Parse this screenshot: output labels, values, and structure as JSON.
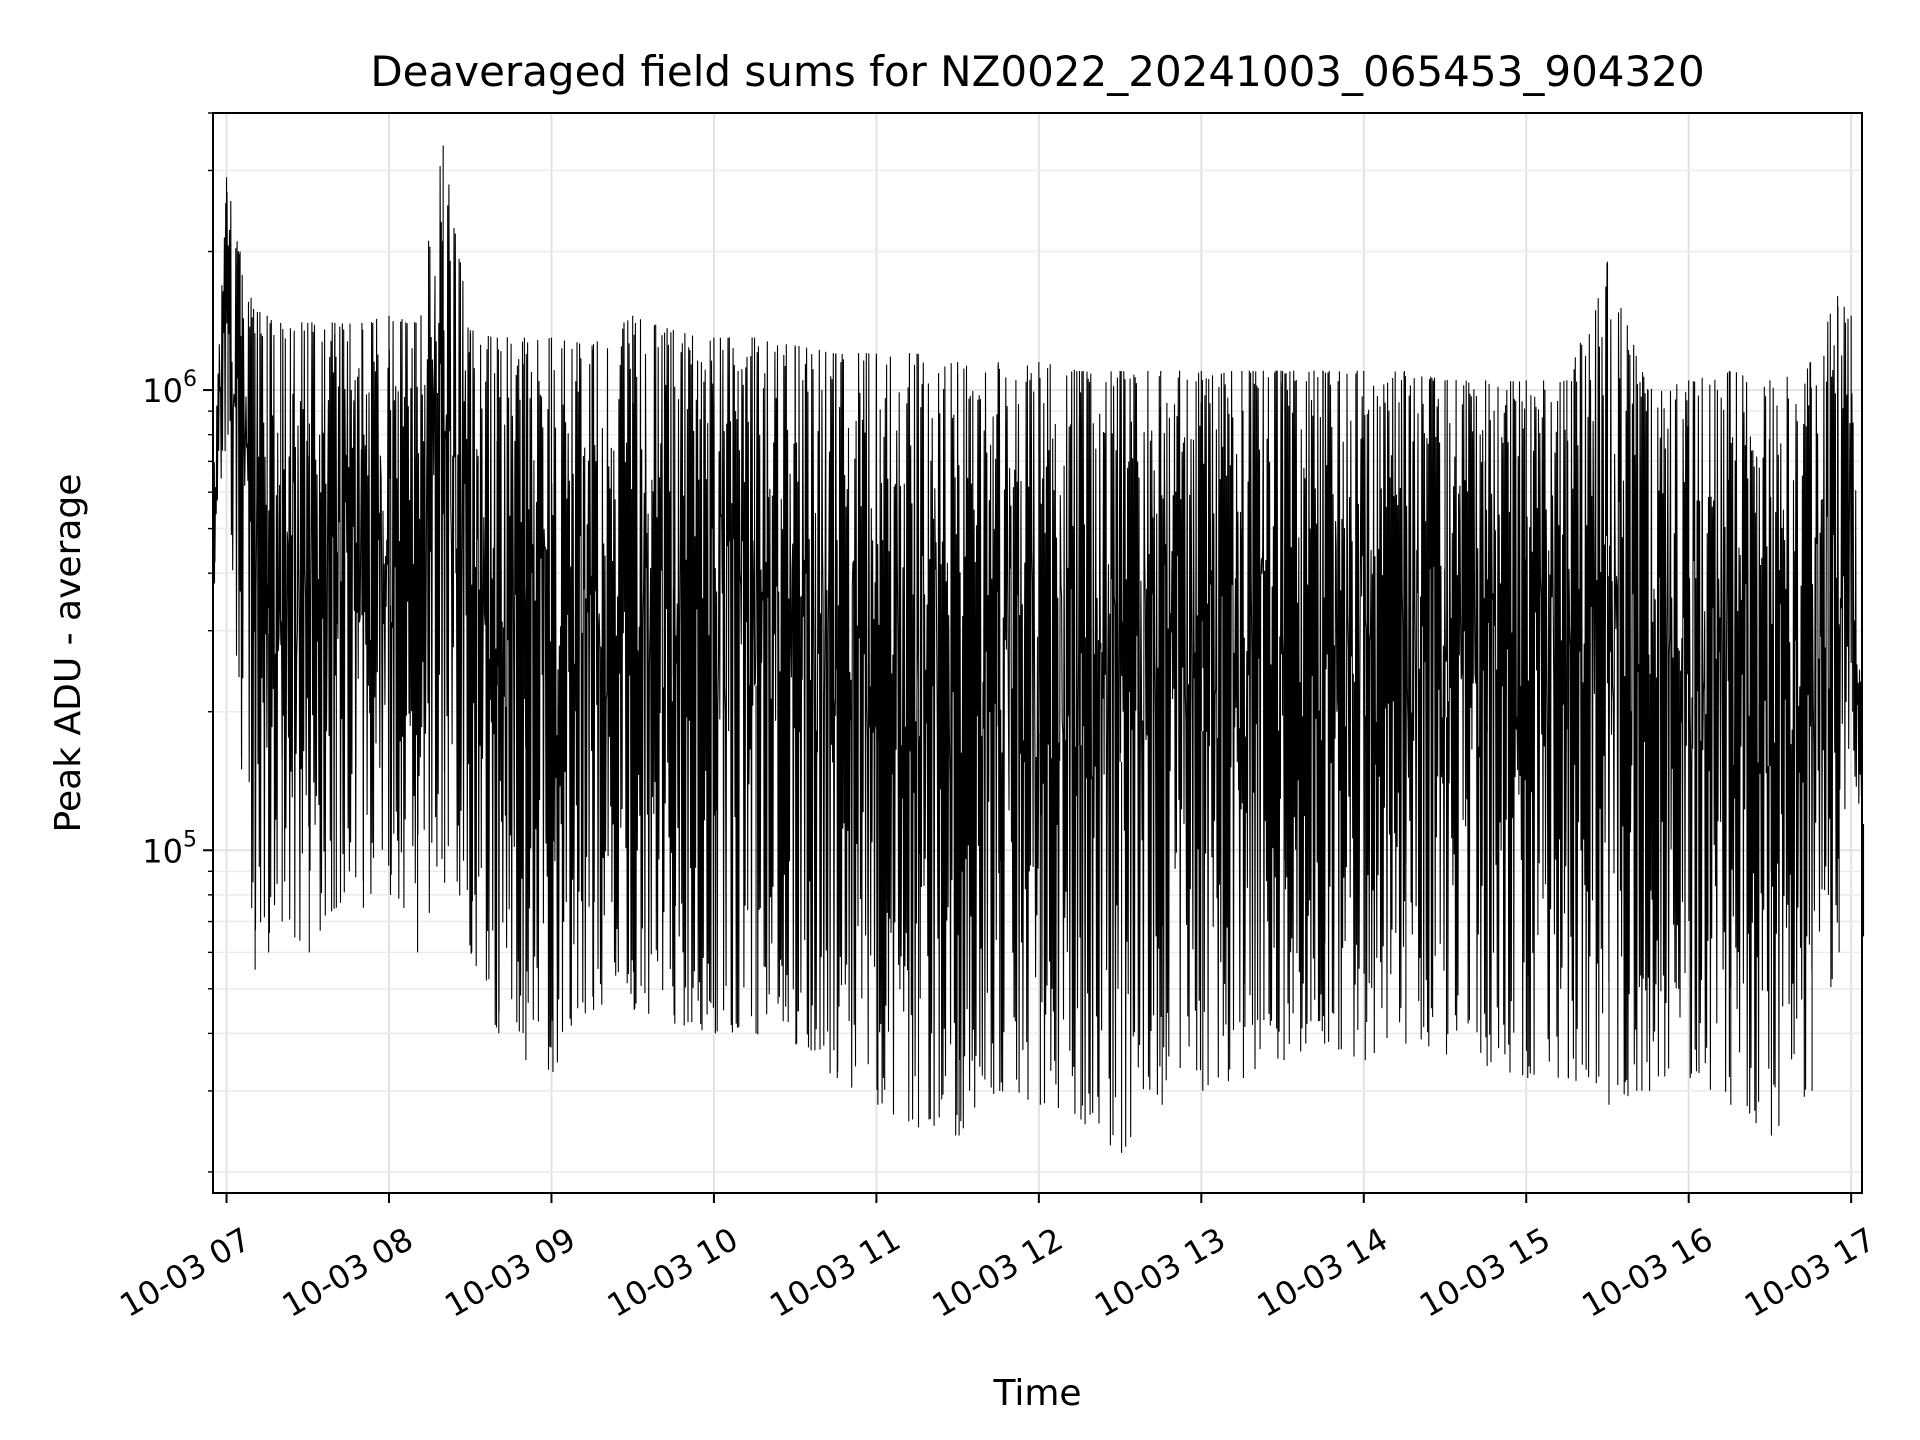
{
  "chart_data": {
    "type": "line",
    "title": "Deaveraged field sums for NZ0022_20241003_065453_904320",
    "xlabel": "Time",
    "ylabel": "Peak ADU - average",
    "yscale": "log",
    "ylim": [
      18000,
      4000000
    ],
    "xlim": [
      "2024-10-03 06:55",
      "2024-10-03 17:04"
    ],
    "grid": true,
    "line_color": "#000000",
    "x_ticks": [
      {
        "x": "2024-10-03 07:00",
        "label": "10-03 07"
      },
      {
        "x": "2024-10-03 08:00",
        "label": "10-03 08"
      },
      {
        "x": "2024-10-03 09:00",
        "label": "10-03 09"
      },
      {
        "x": "2024-10-03 10:00",
        "label": "10-03 10"
      },
      {
        "x": "2024-10-03 11:00",
        "label": "10-03 11"
      },
      {
        "x": "2024-10-03 12:00",
        "label": "10-03 12"
      },
      {
        "x": "2024-10-03 13:00",
        "label": "10-03 13"
      },
      {
        "x": "2024-10-03 14:00",
        "label": "10-03 14"
      },
      {
        "x": "2024-10-03 15:00",
        "label": "10-03 15"
      },
      {
        "x": "2024-10-03 16:00",
        "label": "10-03 16"
      },
      {
        "x": "2024-10-03 17:00",
        "label": "10-03 17"
      }
    ],
    "y_ticks": [
      {
        "value": 100000,
        "base": "10",
        "exp": "5"
      },
      {
        "value": 1000000,
        "base": "10",
        "exp": "6"
      }
    ],
    "series": [
      {
        "x": [
          "2024-10-03 06:55",
          "2024-10-03 07:00",
          "2024-10-03 07:05",
          "2024-10-03 07:10",
          "2024-10-03 07:15",
          "2024-10-03 07:20",
          "2024-10-03 07:30",
          "2024-10-03 07:40",
          "2024-10-03 07:50",
          "2024-10-03 08:00",
          "2024-10-03 08:10",
          "2024-10-03 08:20",
          "2024-10-03 08:30",
          "2024-10-03 08:40",
          "2024-10-03 08:50",
          "2024-10-03 09:00",
          "2024-10-03 09:15",
          "2024-10-03 09:30",
          "2024-10-03 09:45",
          "2024-10-03 10:00",
          "2024-10-03 10:15",
          "2024-10-03 10:30",
          "2024-10-03 10:45",
          "2024-10-03 11:00",
          "2024-10-03 11:15",
          "2024-10-03 11:30",
          "2024-10-03 11:45",
          "2024-10-03 12:00",
          "2024-10-03 12:15",
          "2024-10-03 12:30",
          "2024-10-03 12:45",
          "2024-10-03 13:00",
          "2024-10-03 13:15",
          "2024-10-03 13:30",
          "2024-10-03 13:45",
          "2024-10-03 14:00",
          "2024-10-03 14:15",
          "2024-10-03 14:30",
          "2024-10-03 14:45",
          "2024-10-03 15:00",
          "2024-10-03 15:15",
          "2024-10-03 15:30",
          "2024-10-03 15:45",
          "2024-10-03 16:00",
          "2024-10-03 16:15",
          "2024-10-03 16:30",
          "2024-10-03 16:45",
          "2024-10-03 16:55",
          "2024-10-03 17:00",
          "2024-10-03 17:04"
        ],
        "upper": [
          600000,
          2900000,
          2000000,
          1500000,
          1450000,
          1400000,
          1400000,
          1400000,
          1400000,
          1450000,
          1400000,
          3400000,
          1350000,
          1300000,
          1300000,
          1300000,
          1250000,
          1450000,
          1350000,
          1300000,
          1300000,
          1250000,
          1200000,
          1200000,
          1200000,
          1150000,
          1150000,
          1150000,
          1100000,
          1100000,
          1100000,
          1100000,
          1100000,
          1100000,
          1100000,
          1100000,
          1100000,
          1050000,
          1050000,
          1050000,
          1050000,
          1900000,
          1000000,
          1050000,
          1100000,
          1050000,
          1150000,
          1600000,
          1450000,
          200000
        ],
        "lower": [
          380000,
          800000,
          150000,
          55000,
          60000,
          70000,
          60000,
          75000,
          75000,
          80000,
          60000,
          85000,
          60000,
          40000,
          35000,
          33000,
          45000,
          45000,
          42000,
          40000,
          40000,
          38000,
          32000,
          28000,
          25000,
          24000,
          30000,
          28000,
          26000,
          22000,
          28000,
          30000,
          32000,
          35000,
          38000,
          35000,
          38000,
          36000,
          34000,
          32000,
          32000,
          28000,
          30000,
          32000,
          28000,
          24000,
          30000,
          60000,
          200000,
          65000
        ]
      }
    ]
  }
}
